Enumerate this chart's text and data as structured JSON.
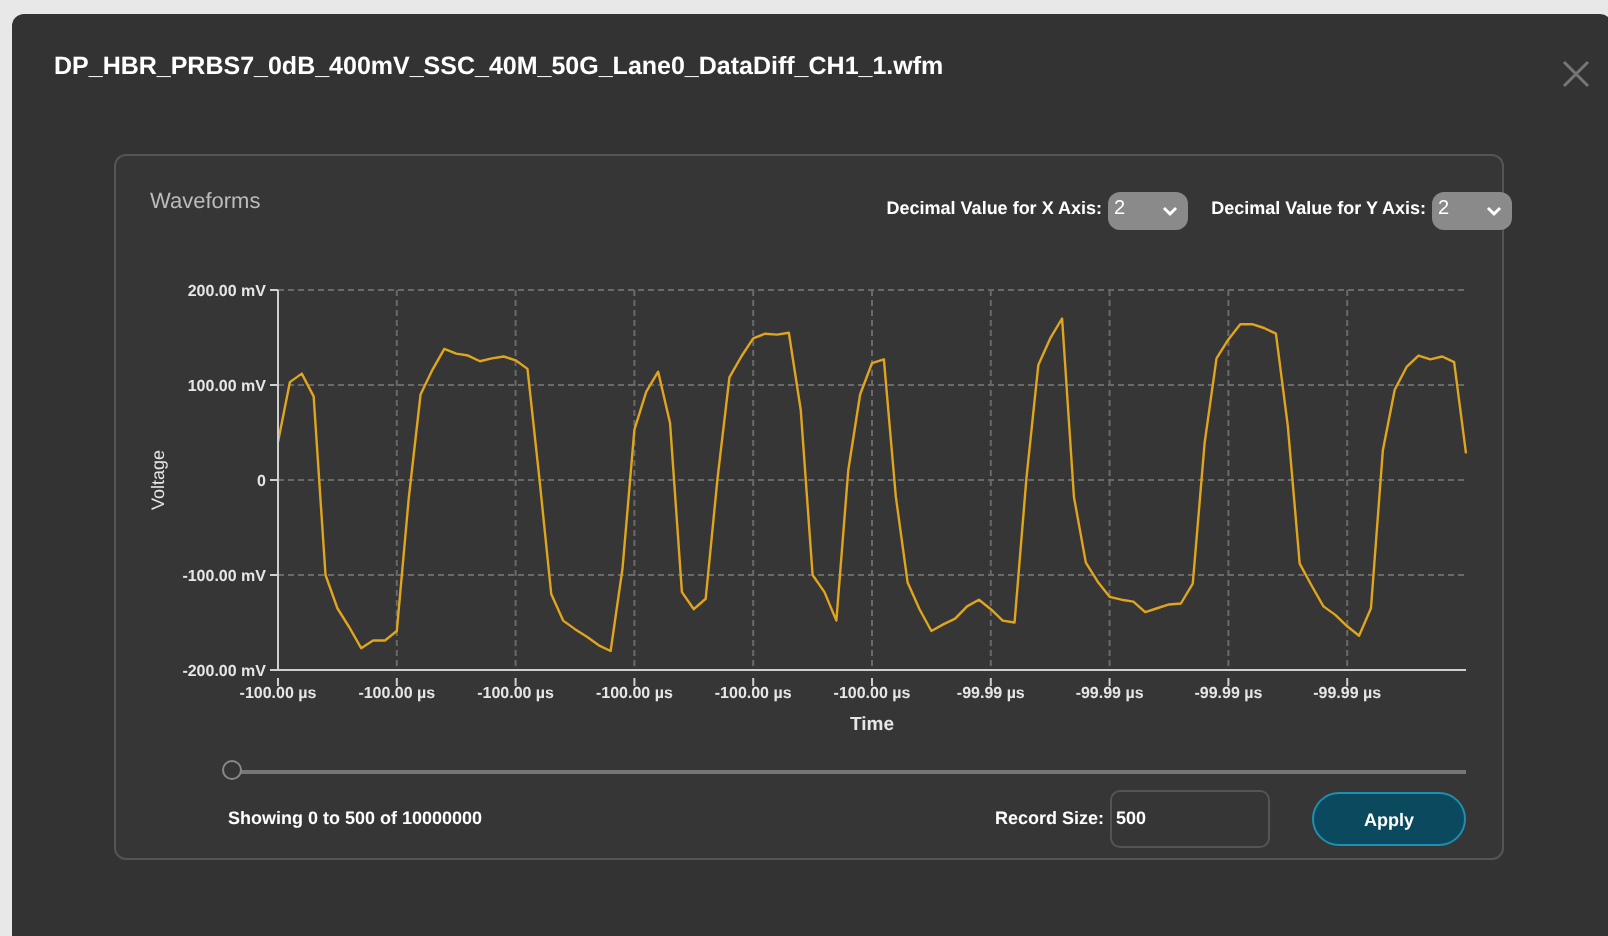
{
  "chart_data": {
    "type": "line",
    "title": "DP_HBR_PRBS7_0dB_400mV_SSC_40M_50G_Lane0_DataDiff_CH1_1.wfm",
    "subtitle": "Waveforms",
    "xlabel": "Time",
    "ylabel": "Voltage",
    "annotations": [
      "Decimal Value for X Axis:",
      "2",
      "Decimal Value for Y Axis:",
      "2",
      "Showing 0 to 500 of 10000000",
      "Record Size:",
      "500",
      "Apply"
    ],
    "categories": [
      "-100.00 µs",
      null,
      null,
      null,
      null,
      null,
      null,
      null,
      null,
      null,
      "-100.00 µs",
      null,
      null,
      null,
      null,
      null,
      null,
      null,
      null,
      null,
      "-100.00 µs",
      null,
      null,
      null,
      null,
      null,
      null,
      null,
      null,
      null,
      "-100.00 µs",
      null,
      null,
      null,
      null,
      null,
      null,
      null,
      null,
      null,
      "-100.00 µs",
      null,
      null,
      null,
      null,
      null,
      null,
      null,
      null,
      null,
      "-100.00 µs",
      null,
      null,
      null,
      null,
      null,
      null,
      null,
      null,
      null,
      "-99.99 µs",
      null,
      null,
      null,
      null,
      null,
      null,
      null,
      null,
      null,
      "-99.99 µs",
      null,
      null,
      null,
      null,
      null,
      null,
      null,
      null,
      null,
      "-99.99 µs",
      null,
      null,
      null,
      null,
      null,
      null,
      null,
      null,
      null,
      "-99.99 µs",
      null,
      null,
      null,
      null,
      null,
      null,
      null,
      null,
      null,
      null
    ],
    "ylim": [
      -200,
      200
    ],
    "yticks": [
      {
        "value": -200,
        "label": "-200.00 mV"
      },
      {
        "value": -100,
        "label": "-100.00 mV"
      },
      0,
      {
        "value": 100,
        "label": "100.00 mV"
      },
      {
        "value": 200,
        "label": "200.00 mV"
      }
    ],
    "grid": true,
    "marker": "none",
    "line_style": "solid",
    "series": [
      {
        "color": "#e0a51e",
        "values": [
          40,
          103,
          112,
          88,
          -100,
          -135,
          -155,
          -177,
          -169,
          -169,
          -159,
          -20,
          90,
          116,
          138,
          133,
          131,
          125,
          128,
          130,
          126,
          117,
          2,
          -120,
          -148,
          -157,
          -165,
          -174,
          -180,
          -93,
          53,
          93,
          114,
          60,
          -118,
          -136,
          -125,
          2,
          108,
          130,
          149,
          154,
          153,
          155,
          74,
          -100,
          -118,
          -148,
          10,
          90,
          123,
          127,
          -17,
          -108,
          -136,
          -159,
          -152,
          -146,
          -133,
          -126,
          -136,
          -148,
          -150,
          2,
          121,
          149,
          170,
          -18,
          -87,
          -107,
          -123,
          -126,
          -128,
          -139,
          -135,
          -131,
          -130,
          -109,
          39,
          128,
          148,
          164,
          164,
          160,
          154,
          57,
          -88,
          -111,
          -133,
          -142,
          -154,
          -164,
          -135,
          31,
          95,
          119,
          131,
          127,
          130,
          124,
          28
        ]
      }
    ]
  }
}
